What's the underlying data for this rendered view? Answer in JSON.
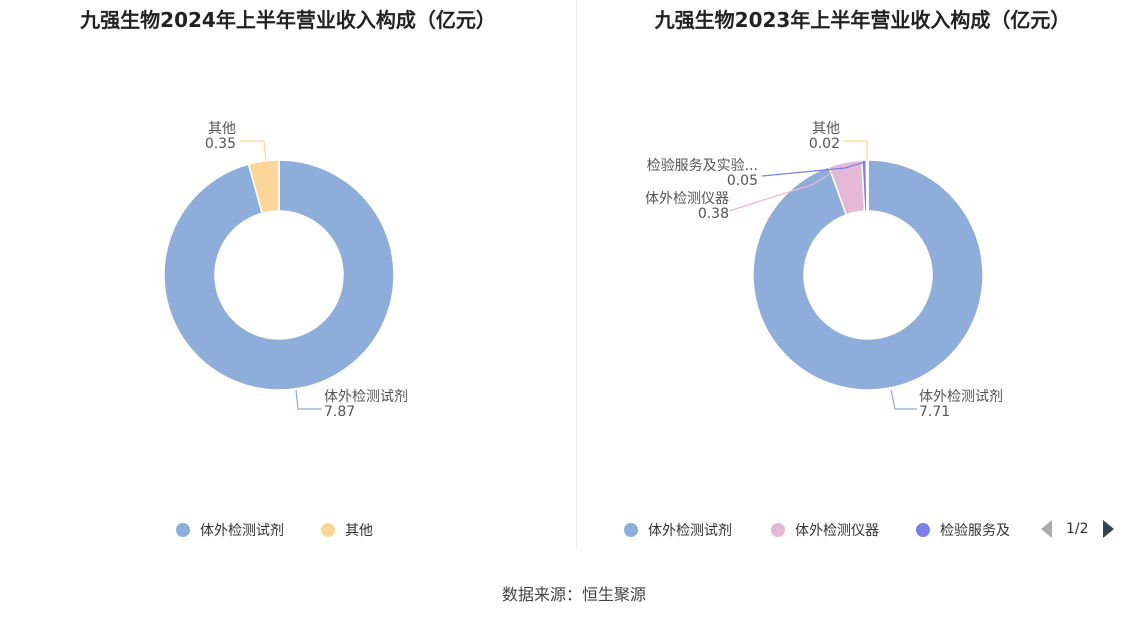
{
  "chart_data": [
    {
      "type": "pie",
      "title": "九强生物2024年上半年营业收入构成（亿元）",
      "slices": [
        {
          "label": "体外检测试剂",
          "value": 7.87,
          "value_text": "7.87",
          "color": "#8eaddb"
        },
        {
          "label": "其他",
          "value": 0.35,
          "value_text": "0.35",
          "color": "#fbd699"
        }
      ],
      "legend": {
        "position": "bottom",
        "items": [
          "体外检测试剂",
          "其他"
        ]
      }
    },
    {
      "type": "pie",
      "title": "九强生物2023年上半年营业收入构成（亿元）",
      "slices": [
        {
          "label": "体外检测试剂",
          "value": 7.71,
          "value_text": "7.71",
          "color": "#8eaddb"
        },
        {
          "label": "体外检测仪器",
          "value": 0.38,
          "value_text": "0.38",
          "color": "#e6b8d8"
        },
        {
          "label": "检验服务及实验...",
          "value": 0.05,
          "value_text": "0.05",
          "color": "#7b7fe8"
        },
        {
          "label": "其他",
          "value": 0.02,
          "value_text": "0.02",
          "color": "#fbd699"
        }
      ],
      "legend": {
        "position": "bottom",
        "items": [
          "体外检测试剂",
          "体外检测仪器",
          "检验服务及"
        ],
        "page": "1/2"
      }
    }
  ],
  "source": "数据来源：恒生聚源"
}
